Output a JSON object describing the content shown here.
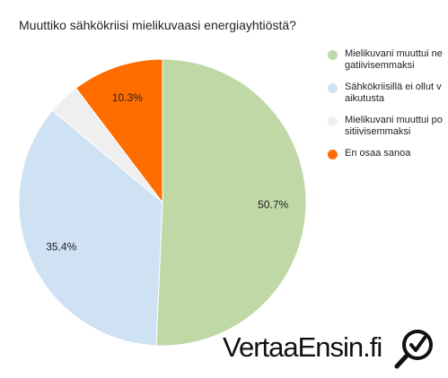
{
  "chart_data": {
    "type": "pie",
    "title": "Muuttiko sähkökriisi mielikuvaasi energiayhtiöstä?",
    "slices": [
      {
        "label": "Mielikuvani muuttui negatiivisemmaksi",
        "value": 50.7,
        "value_label": "50.7%",
        "color": "#bfd8a6"
      },
      {
        "label": "Sähkökriisillä ei ollut vaikutusta",
        "value": 35.4,
        "value_label": "35.4%",
        "color": "#cfe2f3"
      },
      {
        "label": "Mielikuvani muuttui positiivisemmaksi",
        "value": 3.6,
        "value_label": "",
        "color": "#efefef"
      },
      {
        "label": "En osaa sanoa",
        "value": 10.3,
        "value_label": "10.3%",
        "color": "#ff6d01"
      }
    ],
    "legend_position": "right"
  },
  "brand": {
    "text": "VertaaEnsin.fi",
    "logo_icon": "magnifier-check-icon"
  }
}
